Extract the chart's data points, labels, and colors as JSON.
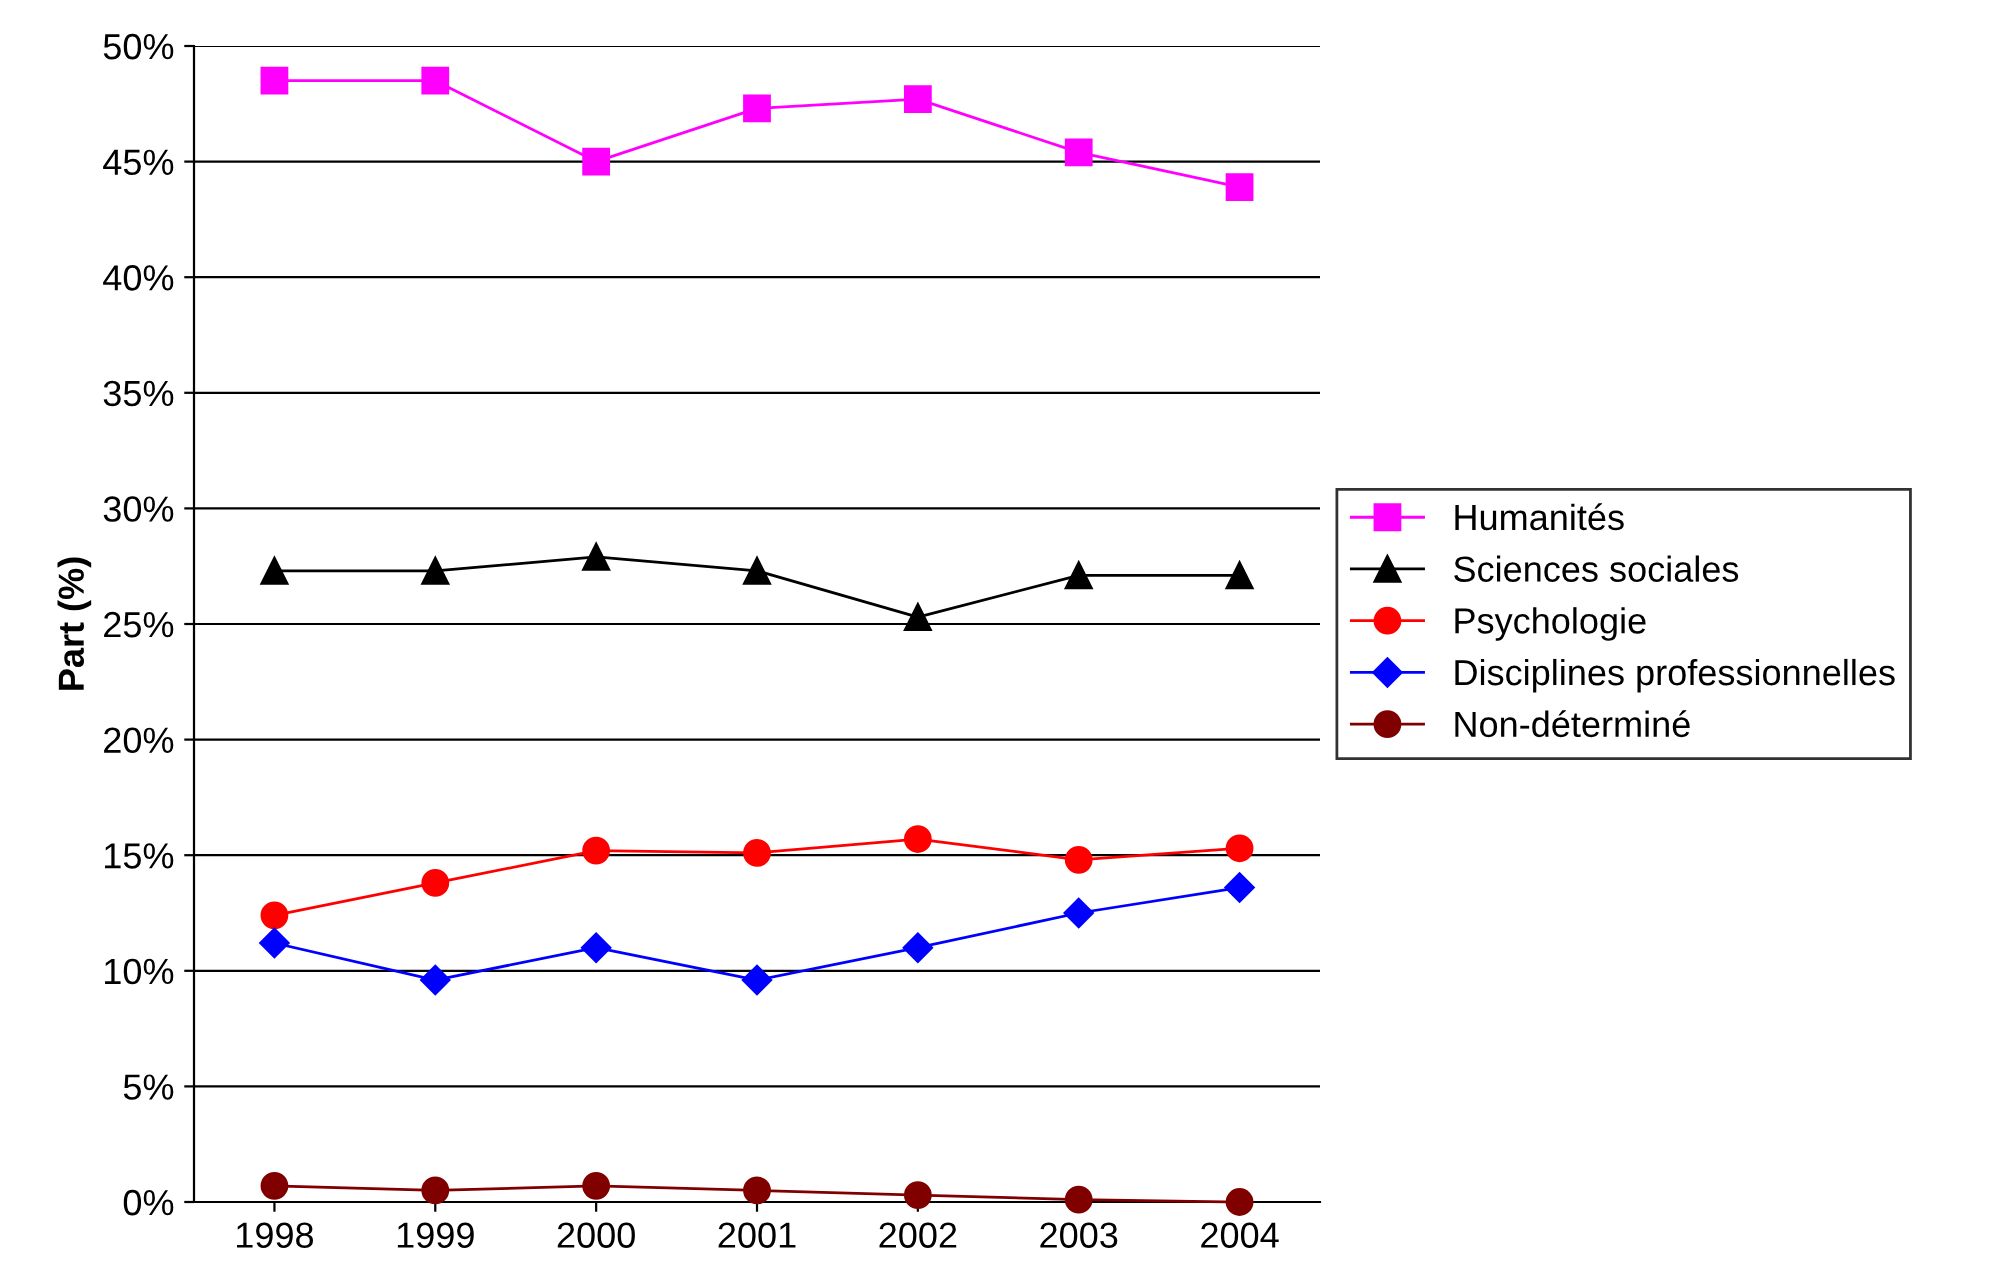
{
  "chart_data": {
    "type": "line",
    "ylabel": "Part (%)",
    "categories": [
      "1998",
      "1999",
      "2000",
      "2001",
      "2002",
      "2003",
      "2004"
    ],
    "ylim": [
      0,
      50
    ],
    "yticks": [
      {
        "value": 0,
        "label": "0%"
      },
      {
        "value": 5,
        "label": "5%"
      },
      {
        "value": 10,
        "label": "10%"
      },
      {
        "value": 15,
        "label": "15%"
      },
      {
        "value": 20,
        "label": "20%"
      },
      {
        "value": 25,
        "label": "25%"
      },
      {
        "value": 30,
        "label": "30%"
      },
      {
        "value": 35,
        "label": "35%"
      },
      {
        "value": 40,
        "label": "40%"
      },
      {
        "value": 45,
        "label": "45%"
      },
      {
        "value": 50,
        "label": "50%"
      }
    ],
    "grid": "y",
    "legend": "right",
    "series": [
      {
        "name": "Humanités",
        "color": "#ff00ff",
        "marker": "square",
        "values": [
          48.5,
          48.5,
          45.0,
          47.3,
          47.7,
          45.4,
          43.9
        ]
      },
      {
        "name": "Sciences sociales",
        "color": "#000000",
        "marker": "triangle",
        "values": [
          27.3,
          27.3,
          27.9,
          27.3,
          25.3,
          27.1,
          27.1
        ]
      },
      {
        "name": "Psychologie",
        "color": "#ff0000",
        "marker": "circle",
        "values": [
          12.4,
          13.8,
          15.2,
          15.1,
          15.7,
          14.8,
          15.3
        ]
      },
      {
        "name": "Disciplines professionnelles",
        "color": "#0000ff",
        "marker": "diamond",
        "values": [
          11.2,
          9.6,
          11.0,
          9.6,
          11.0,
          12.5,
          13.6
        ]
      },
      {
        "name": "Non-déterminé",
        "color": "#800000",
        "marker": "circle",
        "values": [
          0.7,
          0.5,
          0.7,
          0.5,
          0.3,
          0.1,
          0.0
        ]
      }
    ]
  }
}
